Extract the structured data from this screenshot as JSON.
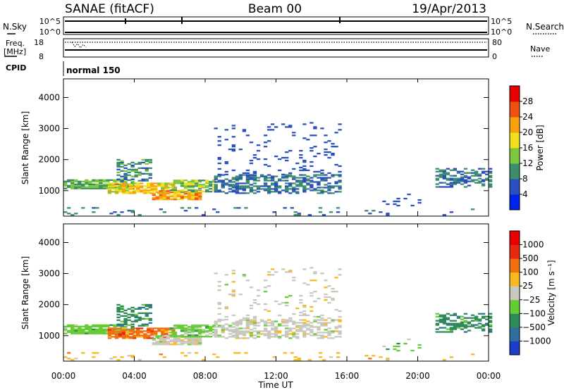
{
  "header": {
    "station": "SANAE (fitACF)",
    "beam": "Beam 00",
    "date": "19/Apr/2013"
  },
  "params": {
    "nsky_label": "N.Sky",
    "nsearch_label": "N.Search",
    "freq_label_1": "Freq.",
    "freq_label_2": "[MHz]",
    "nave_label": "Nave",
    "cpid_label": "CPID",
    "cpid_value": "normal 150",
    "noise_ticks": [
      "10^5",
      "10^0"
    ],
    "freq_ticks": [
      "18",
      "8"
    ],
    "nave_ticks": [
      "80",
      "0"
    ]
  },
  "chart_data": [
    {
      "type": "heatmap",
      "name": "power",
      "xlabel": "",
      "ylabel": "Slant Range [km]",
      "xlim": [
        0,
        24
      ],
      "ylim": [
        180,
        4600
      ],
      "yticks": [
        1000,
        2000,
        3000,
        4000
      ],
      "colorbar": {
        "label": "Power [dB]",
        "range": [
          0,
          32
        ],
        "ticks": [
          "4",
          "8",
          "12",
          "16",
          "20",
          "24",
          "28"
        ],
        "colors": [
          "#0022ee",
          "#2a4fc0",
          "#3c8c6e",
          "#7cc83c",
          "#f0e020",
          "#f8a010",
          "#f05010",
          "#e80000"
        ]
      }
    },
    {
      "type": "heatmap",
      "name": "velocity",
      "xlabel": "Time UT",
      "ylabel": "Slant Range [km]",
      "xlim": [
        0,
        24
      ],
      "ylim": [
        180,
        4600
      ],
      "yticks": [
        1000,
        2000,
        3000,
        4000
      ],
      "xticks": [
        "00:00",
        "04:00",
        "08:00",
        "12:00",
        "16:00",
        "20:00",
        "00:00"
      ],
      "colorbar": {
        "label": "Velocity [m s⁻¹]",
        "ticks": [
          "1000",
          "500",
          "100",
          "25",
          "−25",
          "−100",
          "−500",
          "−1000"
        ],
        "colors": [
          "#1e3cc8",
          "#2e6fa0",
          "#2f8a5a",
          "#66cc33",
          "#c8c8c0",
          "#f8b820",
          "#f07010",
          "#e82810",
          "#e80000"
        ]
      }
    }
  ]
}
